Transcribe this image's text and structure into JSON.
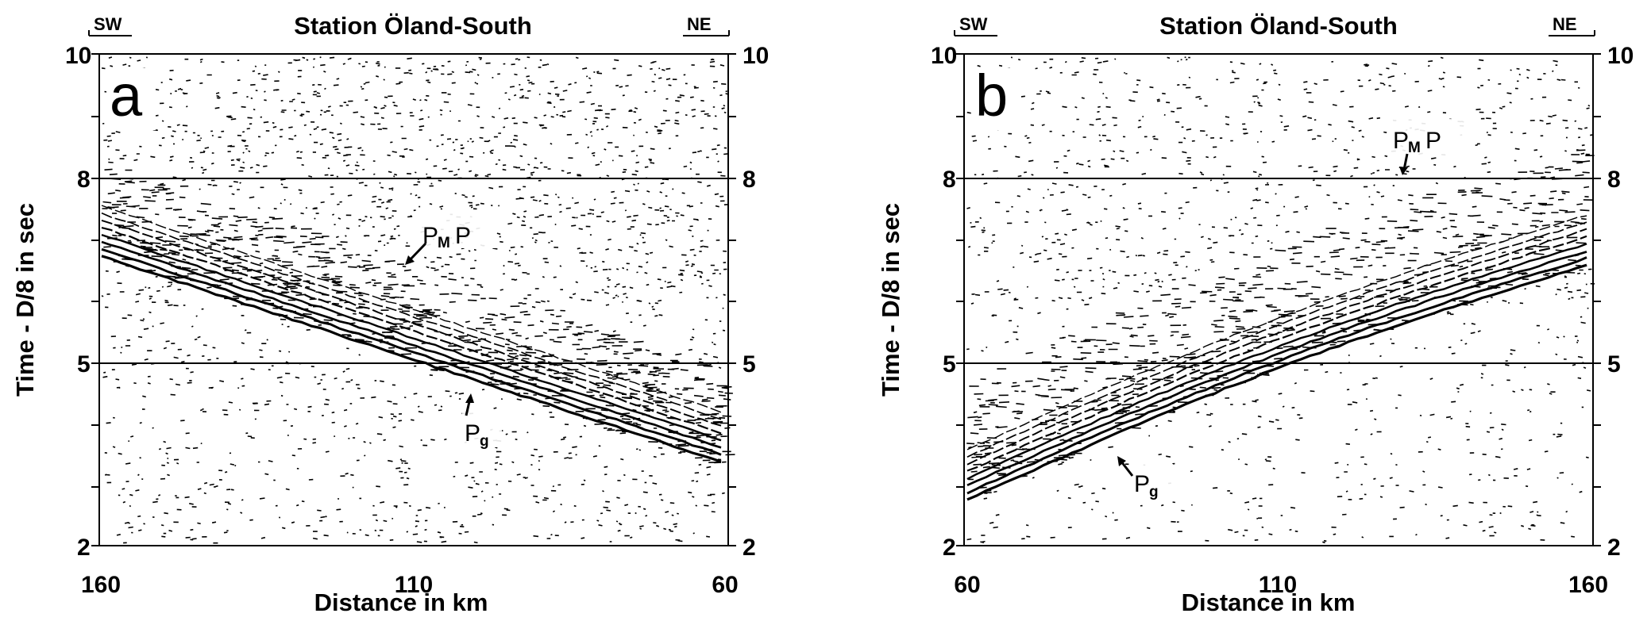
{
  "panels": [
    {
      "id": "a",
      "letter": "a",
      "title": "Station Öland-South",
      "dir_left": "SW",
      "dir_right": "NE",
      "xlabel": "Distance in km",
      "ylabel": "Time - D/8  in sec",
      "x_ticks": [
        "160",
        "110",
        "60"
      ],
      "y_ticks": [
        "10",
        "8",
        "5",
        "2"
      ],
      "pmp_main": "P",
      "pmp_sub": "M",
      "pmp_tail": "P",
      "pg_main": "P",
      "pg_sub": "g"
    },
    {
      "id": "b",
      "letter": "b",
      "title": "Station Öland-South",
      "dir_left": "SW",
      "dir_right": "NE",
      "xlabel": "Distance in km",
      "ylabel": "Time - D/8  in sec",
      "x_ticks": [
        "60",
        "110",
        "160"
      ],
      "y_ticks": [
        "10",
        "8",
        "5",
        "2"
      ],
      "pmp_main": "P",
      "pmp_sub": "M",
      "pmp_tail": "P",
      "pg_main": "P",
      "pg_sub": "g"
    }
  ]
}
